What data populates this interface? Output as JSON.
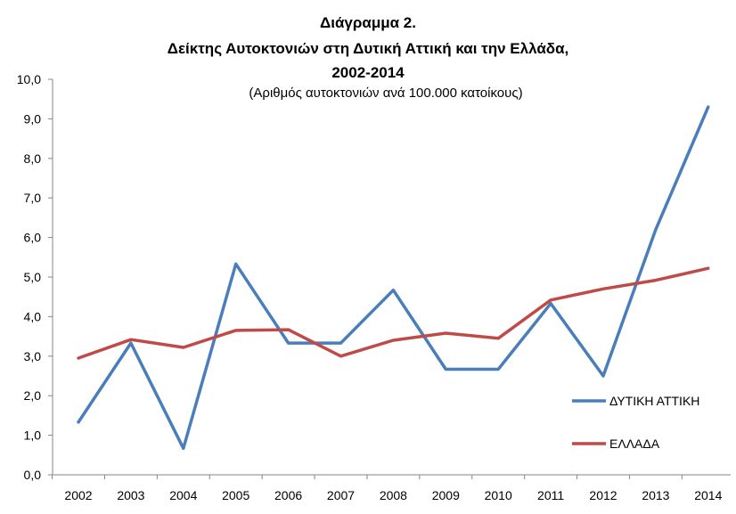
{
  "chart_data": {
    "type": "line",
    "title_lines": [
      "Διάγραμμα 2.",
      "Δείκτης Αυτοκτονιών στη Δυτική Αττική και την Ελλάδα,",
      "2002-2014"
    ],
    "subtitle": "(Αριθμός αυτοκτονιών ανά 100.000 κατοίκους)",
    "x": [
      "2002",
      "2003",
      "2004",
      "2005",
      "2006",
      "2007",
      "2008",
      "2009",
      "2010",
      "2011",
      "2012",
      "2013",
      "2014"
    ],
    "series": [
      {
        "name": "ΔΥΤΙΚΗ ΑΤΤΙΚΗ",
        "color": "#4a7ebb",
        "values": [
          1.33,
          3.33,
          0.67,
          5.33,
          3.33,
          3.33,
          4.67,
          2.67,
          2.67,
          4.33,
          2.5,
          6.2,
          9.3
        ]
      },
      {
        "name": "ΕΛΛΑΔΑ",
        "color": "#be4b48",
        "values": [
          2.95,
          3.42,
          3.22,
          3.65,
          3.67,
          3.0,
          3.4,
          3.58,
          3.45,
          4.42,
          4.7,
          4.92,
          5.22
        ]
      }
    ],
    "ylim": [
      0,
      10
    ],
    "y_ticks": [
      "0,0",
      "1,0",
      "2,0",
      "3,0",
      "4,0",
      "5,0",
      "6,0",
      "7,0",
      "8,0",
      "9,0",
      "10,0"
    ],
    "grid": false,
    "legend_position": "right"
  }
}
